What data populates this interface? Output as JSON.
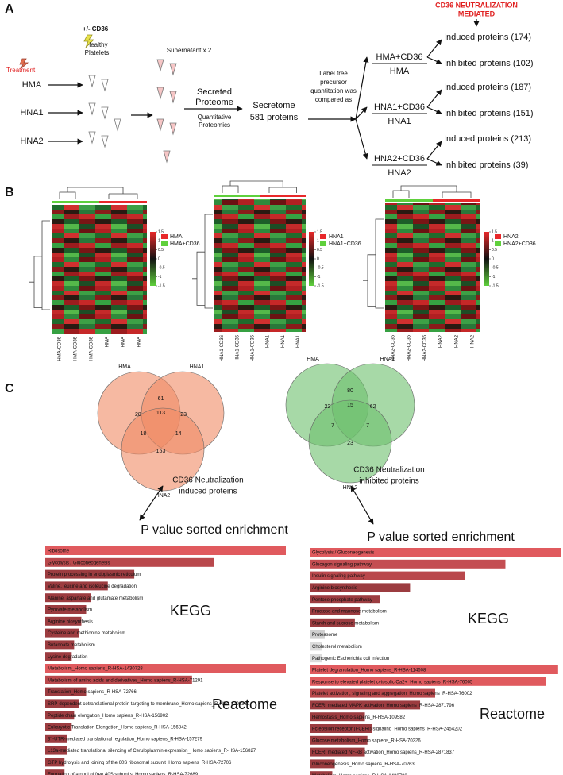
{
  "panel_a": {
    "label": "A",
    "header": [
      "CD36 NEUTRALIZATION",
      "MEDIATED"
    ],
    "cd36": "+/- CD36",
    "platelets": [
      "Healthy",
      "Platelets"
    ],
    "treatment": "Treatment",
    "samples": [
      "HMA",
      "HNA1",
      "HNA2"
    ],
    "supernatant": "Supernatant x 2",
    "secreted": [
      "Secreted",
      "Proteome"
    ],
    "method": [
      "Quantitative",
      "Proteomics"
    ],
    "secretome": [
      "Secretome",
      "581 proteins"
    ],
    "comparison": [
      "Label free",
      "precursor",
      "quantitation was",
      "compared as"
    ],
    "groups": [
      {
        "numerator": "HMA+CD36",
        "denominator": "HMA",
        "induced": "Induced proteins (174)",
        "inhibited": "Inhibited proteins (102)"
      },
      {
        "numerator": "HNA1+CD36",
        "denominator": "HNA1",
        "induced": "Induced proteins (187)",
        "inhibited": "Inhibited proteins (151)"
      },
      {
        "numerator": "HNA2+CD36",
        "denominator": "HNA2",
        "induced": "Induced proteins (213)",
        "inhibited": "Inhibited proteins (39)"
      }
    ]
  },
  "panel_b": {
    "label": "B",
    "heatmaps": [
      {
        "legend": [
          "HMA",
          "HMA+CD36"
        ],
        "columns": [
          "HMA-CD36",
          "HMA-CD36",
          "HMA-CD36",
          "HMA",
          "HMA",
          "HMA"
        ],
        "scale_ticks": [
          1.5,
          1,
          0.5,
          0,
          -0.5,
          -1,
          -1.5
        ]
      },
      {
        "legend": [
          "HNA1",
          "HNA1+CD36"
        ],
        "columns": [
          "HNA1-CD36",
          "HNA1-CD36",
          "HNA1-CD36",
          "HNA1",
          "HNA1",
          "HNA1"
        ],
        "scale_ticks": [
          1.5,
          1,
          0.5,
          0,
          -0.5,
          -1,
          -1.5
        ]
      },
      {
        "legend": [
          "HNA2",
          "HNA2+CD36"
        ],
        "columns": [
          "HNA2-CD36",
          "HNA2-CD36",
          "HNA2-CD36",
          "HNA2",
          "HNA2",
          "HNA2"
        ],
        "scale_ticks": [
          1.5,
          1,
          0.5,
          0,
          -0.5,
          -1,
          -1.5
        ]
      }
    ]
  },
  "panel_c": {
    "label": "C",
    "venns": [
      {
        "sets": [
          "HMA",
          "HNA1",
          "HNA2"
        ],
        "regions": [
          28,
          61,
          23,
          113,
          18,
          14,
          153
        ],
        "caption": [
          "CD36 Neutralization",
          "induced proteins"
        ],
        "color": "#f08a64"
      },
      {
        "sets": [
          "HMA",
          "HNA1",
          "HNA2"
        ],
        "regions": [
          22,
          80,
          62,
          15,
          7,
          7,
          23
        ],
        "caption": [
          "CD36 Neutralization",
          "inhibited proteins"
        ],
        "color": "#6cc06c"
      }
    ],
    "enrichment": [
      {
        "title": "P value sorted enrichment",
        "xlim": [
          0,
          100
        ],
        "sections": [
          {
            "name": "KEGG",
            "items": [
              {
                "label": "Ribosome",
                "value": 100,
                "color": "#e05a5e"
              },
              {
                "label": "Glycolysis / Gluconeogenesis",
                "value": 70,
                "color": "#b9484c"
              },
              {
                "label": "Protein processing in endoplasmic reticulum",
                "value": 37,
                "color": "#9c3c40"
              },
              {
                "label": "Valine, leucine and isoleucine degradation",
                "value": 26,
                "color": "#9c3c40"
              },
              {
                "label": "Alanine, aspartate and glutamate metabolism",
                "value": 19,
                "color": "#9c3c40"
              },
              {
                "label": "Pyruvate metabolism",
                "value": 17,
                "color": "#9c3c40"
              },
              {
                "label": "Arginine biosynthesis",
                "value": 15,
                "color": "#9c3c40"
              },
              {
                "label": "Cysteine and methionine metabolism",
                "value": 14,
                "color": "#9c3c40"
              },
              {
                "label": "Butanoate metabolism",
                "value": 12,
                "color": "#9c3c40"
              },
              {
                "label": "Lysine degradation",
                "value": 11,
                "color": "#9c3c40"
              }
            ]
          },
          {
            "name": "Reactome",
            "items": [
              {
                "label": "Metabolism_Homo sapiens_R-HSA-1430728",
                "value": 100,
                "color": "#e05a5e"
              },
              {
                "label": "Metabolism of amino acids and derivatives_Homo sapiens_R-HSA-71291",
                "value": 61,
                "color": "#b9484c"
              },
              {
                "label": "Translation_Homo sapiens_R-HSA-72766",
                "value": 17,
                "color": "#9c3c40"
              },
              {
                "label": "SRP-dependent cotranslational protein targeting to membrane_Homo sapiens_R-HSA-1799339",
                "value": 14,
                "color": "#9c3c40"
              },
              {
                "label": "Peptide chain elongation_Homo sapiens_R-HSA-156902",
                "value": 12,
                "color": "#9c3c40"
              },
              {
                "label": "Eukaryotic Translation Elongation_Homo sapiens_R-HSA-156842",
                "value": 11,
                "color": "#9c3c40"
              },
              {
                "label": "3' -UTR-mediated translational regulation_Homo sapiens_R-HSA-157279",
                "value": 9,
                "color": "#9c3c40"
              },
              {
                "label": "L13a-mediated translational silencing of Ceruloplasmin expression_Homo sapiens_R-HSA-156827",
                "value": 9,
                "color": "#9c3c40"
              },
              {
                "label": "GTP hydrolysis and joining of the 60S ribosomal subunit_Homo sapiens_R-HSA-72706",
                "value": 8,
                "color": "#9c3c40"
              },
              {
                "label": "Formation of a pool of free 40S subunits_Homo sapiens_R-HSA-72689",
                "value": 8,
                "color": "#9c3c40"
              }
            ]
          }
        ]
      },
      {
        "title": "P value sorted enrichment",
        "xlim": [
          0,
          100
        ],
        "sections": [
          {
            "name": "KEGG",
            "items": [
              {
                "label": "Glycolysis / Gluconeogenesis",
                "value": 100,
                "color": "#e05a5e"
              },
              {
                "label": "Glucagon signaling pathway",
                "value": 78,
                "color": "#c44e52"
              },
              {
                "label": "Insulin signaling pathway",
                "value": 62,
                "color": "#b9484c"
              },
              {
                "label": "Arginine biosynthesis",
                "value": 40,
                "color": "#9c3c40"
              },
              {
                "label": "Pentose phosphate pathway",
                "value": 28,
                "color": "#9c3c40"
              },
              {
                "label": "Fructose and mannose metabolism",
                "value": 20,
                "color": "#9c3c40"
              },
              {
                "label": "Starch and sucrose metabolism",
                "value": 18,
                "color": "#9c3c40"
              },
              {
                "label": "Proteasome",
                "value": 6,
                "color": "#cfcfcf"
              },
              {
                "label": "Cholesterol metabolism",
                "value": 5,
                "color": "#dcdcdc"
              },
              {
                "label": "Pathogenic Escherichia coli infection",
                "value": 5,
                "color": "#dcdcdc"
              }
            ]
          },
          {
            "name": "Reactome",
            "items": [
              {
                "label": "Platelet degranulation_Homo sapiens_R-HSA-114608",
                "value": 99,
                "color": "#e05a5e"
              },
              {
                "label": "Response to elevated platelet cytosolic Ca2+_Homo sapiens_R-HSA-76005",
                "value": 94,
                "color": "#e05a5e"
              },
              {
                "label": "Platelet activation, signaling and aggregation_Homo sapiens_R-HSA-76002",
                "value": 50,
                "color": "#b9484c"
              },
              {
                "label": "FCERI mediated MAPK activation_Homo sapiens_R-HSA-2871796",
                "value": 44,
                "color": "#9c3c40"
              },
              {
                "label": "Hemostasis_Homo sapiens_R-HSA-109582",
                "value": 22,
                "color": "#9c3c40"
              },
              {
                "label": "Fc epsilon receptor (FCERI) signaling_Homo sapiens_R-HSA-2454202",
                "value": 25,
                "color": "#9c3c40"
              },
              {
                "label": "Glucose metabolism_Homo sapiens_R-HSA-70326",
                "value": 23,
                "color": "#9c3c40"
              },
              {
                "label": "FCERI mediated NF-kB activation_Homo sapiens_R-HSA-2871837",
                "value": 22,
                "color": "#9c3c40"
              },
              {
                "label": "Gluconeogenesis_Homo sapiens_R-HSA-70263",
                "value": 10,
                "color": "#9c3c40"
              },
              {
                "label": "Metabolism_Homo sapiens_R-HSA-1430728",
                "value": 9,
                "color": "#9c3c40"
              }
            ]
          }
        ]
      }
    ]
  }
}
